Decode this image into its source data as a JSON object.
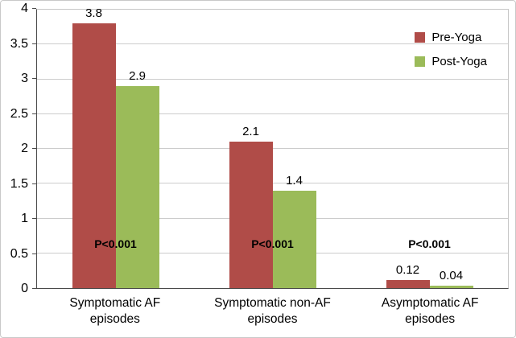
{
  "chart_data": {
    "type": "bar",
    "title": "",
    "xlabel": "",
    "ylabel": "",
    "categories": [
      "Symptomatic AF episodes",
      "Symptomatic non-AF episodes",
      "Asymptomatic AF episodes"
    ],
    "series": [
      {
        "name": "Pre-Yoga",
        "color": "#b04c48",
        "values": [
          3.8,
          2.1,
          0.12
        ],
        "labels": [
          "3.8",
          "2.1",
          "0.12"
        ]
      },
      {
        "name": "Post-Yoga",
        "color": "#9bbb59",
        "values": [
          2.9,
          1.4,
          0.04
        ],
        "labels": [
          "2.9",
          "1.4",
          "0.04"
        ]
      }
    ],
    "annotations": [
      "P<0.001",
      "P<0.001",
      "P<0.001"
    ],
    "ylim": [
      0,
      4
    ],
    "ytick_step": 0.5,
    "yticks": [
      "0",
      "0.5",
      "1",
      "1.5",
      "2",
      "2.5",
      "3",
      "3.5",
      "4"
    ],
    "grid": true,
    "legend_position": "top-right",
    "colors": {
      "pre_yoga": "#b04c48",
      "post_yoga": "#9bbb59",
      "gridline": "#cccccc",
      "axis": "#4a4a4a"
    }
  }
}
